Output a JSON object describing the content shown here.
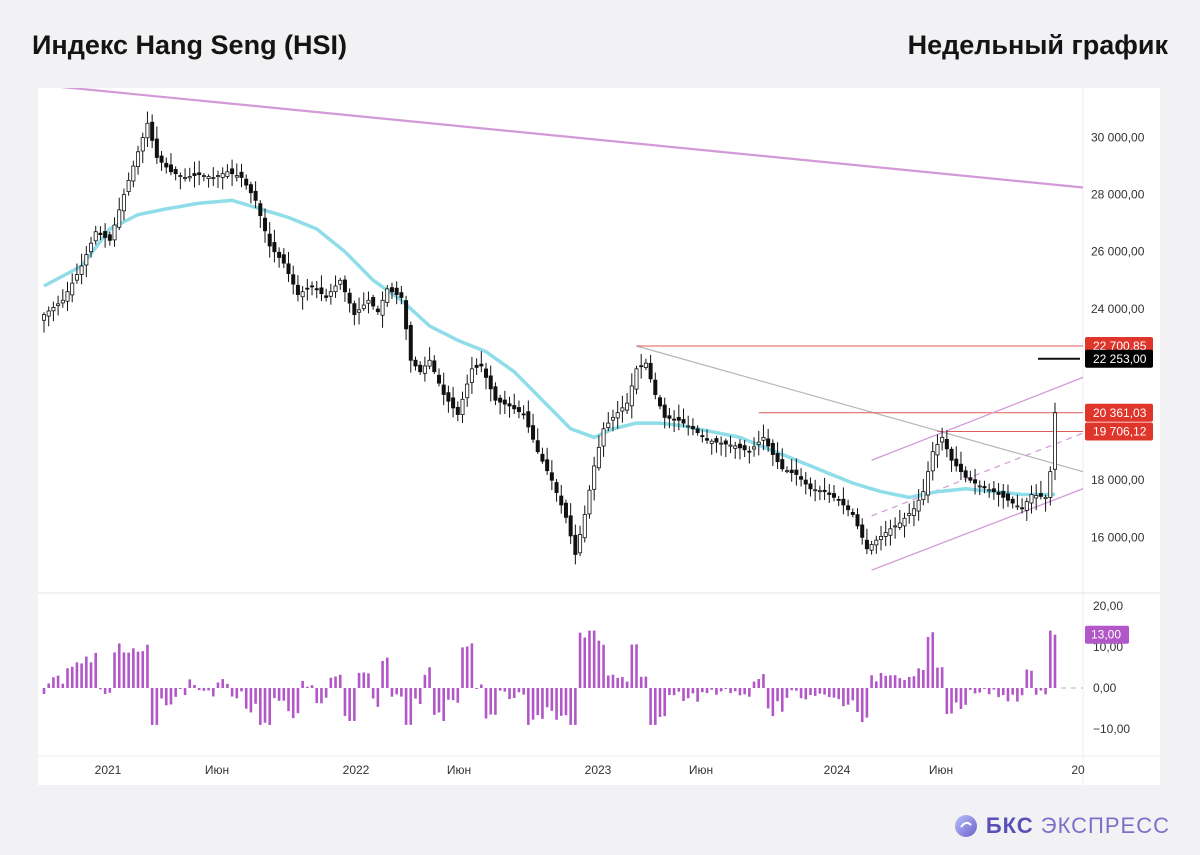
{
  "header": {
    "title": "Индекс Hang Seng (HSI)",
    "timeframe": "Недельный график"
  },
  "brand": {
    "prefix": "БКС",
    "suffix": "ЭКСПРЕСС",
    "color": "#6c5fc7"
  },
  "colors": {
    "up": "#111111",
    "down": "#111111",
    "ma": "#8fdde8",
    "channel": "#d29ad6",
    "resistance": "#e25b5b",
    "trend": "#b5b5b5",
    "oscillator": "#b157c7",
    "label_red": "#e0352b",
    "label_black": "#000000",
    "label_purple": "#b157c7"
  },
  "chart_data": [
    {
      "type": "candlestick",
      "title": "",
      "xlabel": "",
      "ylabel": "",
      "y_ticks": [
        30000,
        28000,
        26000,
        24000,
        18000,
        16000
      ],
      "y_tick_labels": [
        "30 000,00",
        "28 000,00",
        "26 000,00",
        "24 000,00",
        "18 000,00",
        "16 000,00"
      ],
      "x_tick_labels": [
        "2021",
        "Июн",
        "2022",
        "Июн",
        "2023",
        "Июн",
        "2024",
        "Июн",
        "20"
      ],
      "grid": false,
      "price_labels": [
        {
          "value": 22700.85,
          "text": "22 700,85",
          "style": "red"
        },
        {
          "value": 22253.0,
          "text": "22 253,00",
          "style": "black"
        },
        {
          "value": 20361.03,
          "text": "20 361,03",
          "style": "red"
        },
        {
          "value": 19706.12,
          "text": "19 706,12",
          "style": "red"
        }
      ],
      "close_anchors": [
        [
          0,
          23800
        ],
        [
          4,
          24300
        ],
        [
          8,
          25500
        ],
        [
          11,
          26700
        ],
        [
          14,
          26400
        ],
        [
          17,
          28000
        ],
        [
          20,
          29500
        ],
        [
          22,
          30500
        ],
        [
          24,
          29300
        ],
        [
          27,
          28800
        ],
        [
          30,
          28600
        ],
        [
          33,
          28700
        ],
        [
          36,
          28600
        ],
        [
          39,
          28800
        ],
        [
          42,
          28600
        ],
        [
          45,
          27800
        ],
        [
          48,
          26200
        ],
        [
          51,
          25600
        ],
        [
          54,
          24500
        ],
        [
          57,
          24800
        ],
        [
          60,
          24400
        ],
        [
          63,
          25000
        ],
        [
          66,
          23800
        ],
        [
          69,
          24300
        ],
        [
          71,
          23900
        ],
        [
          73,
          24700
        ],
        [
          76,
          24400
        ],
        [
          78,
          22200
        ],
        [
          80,
          21800
        ],
        [
          82,
          22200
        ],
        [
          85,
          21000
        ],
        [
          88,
          20300
        ],
        [
          91,
          21900
        ],
        [
          93,
          22000
        ],
        [
          96,
          20800
        ],
        [
          99,
          20600
        ],
        [
          102,
          20300
        ],
        [
          105,
          19000
        ],
        [
          108,
          18000
        ],
        [
          111,
          16700
        ],
        [
          113,
          15400
        ],
        [
          115,
          16800
        ],
        [
          117,
          18500
        ],
        [
          119,
          19800
        ],
        [
          121,
          20200
        ],
        [
          124,
          20700
        ],
        [
          126,
          21900
        ],
        [
          128,
          22100
        ],
        [
          130,
          21000
        ],
        [
          132,
          20200
        ],
        [
          135,
          20100
        ],
        [
          138,
          19800
        ],
        [
          141,
          19400
        ],
        [
          144,
          19300
        ],
        [
          147,
          19200
        ],
        [
          150,
          19000
        ],
        [
          153,
          19500
        ],
        [
          155,
          18900
        ],
        [
          157,
          18400
        ],
        [
          160,
          18200
        ],
        [
          163,
          17700
        ],
        [
          166,
          17600
        ],
        [
          169,
          17300
        ],
        [
          172,
          16800
        ],
        [
          175,
          15600
        ],
        [
          177,
          15900
        ],
        [
          180,
          16300
        ],
        [
          182,
          16500
        ],
        [
          185,
          17000
        ],
        [
          187,
          17600
        ],
        [
          189,
          19000
        ],
        [
          191,
          19500
        ],
        [
          193,
          18700
        ],
        [
          196,
          18100
        ],
        [
          199,
          17800
        ],
        [
          202,
          17600
        ],
        [
          205,
          17300
        ],
        [
          208,
          17000
        ],
        [
          210,
          17500
        ],
        [
          213,
          17400
        ],
        [
          214,
          18300
        ],
        [
          215,
          20362
        ]
      ],
      "ma_anchors": [
        [
          0,
          24800
        ],
        [
          8,
          25500
        ],
        [
          14,
          26800
        ],
        [
          20,
          27300
        ],
        [
          26,
          27500
        ],
        [
          33,
          27700
        ],
        [
          40,
          27800
        ],
        [
          46,
          27500
        ],
        [
          52,
          27200
        ],
        [
          58,
          26800
        ],
        [
          64,
          26000
        ],
        [
          70,
          25000
        ],
        [
          76,
          24300
        ],
        [
          82,
          23400
        ],
        [
          88,
          22900
        ],
        [
          94,
          22500
        ],
        [
          100,
          21800
        ],
        [
          106,
          20800
        ],
        [
          112,
          19800
        ],
        [
          117,
          19500
        ],
        [
          121,
          19800
        ],
        [
          126,
          20000
        ],
        [
          131,
          20000
        ],
        [
          136,
          19900
        ],
        [
          142,
          19700
        ],
        [
          148,
          19500
        ],
        [
          154,
          19100
        ],
        [
          160,
          18700
        ],
        [
          166,
          18300
        ],
        [
          172,
          17900
        ],
        [
          178,
          17600
        ],
        [
          184,
          17400
        ],
        [
          190,
          17600
        ],
        [
          196,
          17700
        ],
        [
          202,
          17600
        ],
        [
          208,
          17500
        ],
        [
          215,
          17500
        ]
      ],
      "oscillator": {
        "ticks": [
          20,
          10,
          0,
          -10
        ],
        "tick_labels": [
          "20,00",
          "10,00",
          "0,00",
          "−10,00"
        ],
        "last_value": 13.0,
        "last_label": "13,00"
      }
    }
  ]
}
